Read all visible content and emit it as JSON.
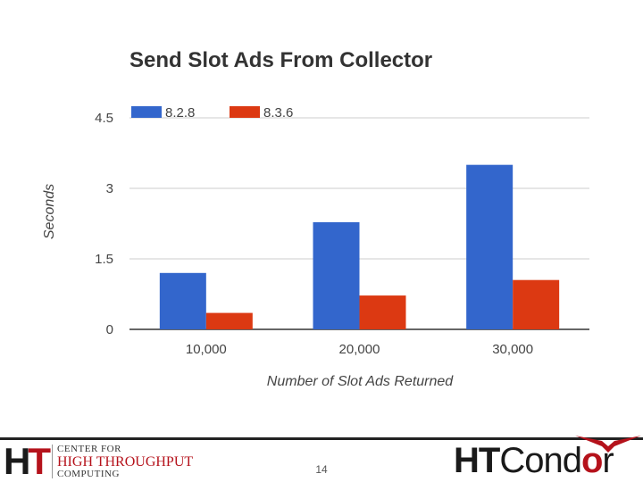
{
  "chart_data": {
    "type": "bar",
    "title": "Send Slot Ads From Collector",
    "xlabel": "Number of Slot Ads Returned",
    "ylabel": "Seconds",
    "categories": [
      "10,000",
      "20,000",
      "30,000"
    ],
    "series": [
      {
        "name": "8.2.8",
        "color": "#3366cc",
        "values": [
          1.2,
          2.28,
          3.5
        ]
      },
      {
        "name": "8.3.6",
        "color": "#dc3912",
        "values": [
          0.35,
          0.72,
          1.05
        ]
      }
    ],
    "ylim": [
      0,
      4.5
    ],
    "yticks": [
      "0",
      "1.5",
      "3",
      "4.5"
    ],
    "grid": true,
    "legend": "top-left"
  },
  "footer": {
    "chtc": {
      "mark_h": "H",
      "mark_t": "T",
      "line1": "CENTER FOR",
      "line2": "HIGH THROUGHPUT",
      "line3": "COMPUTING"
    },
    "page_number": "14",
    "htcondor": {
      "ht": "HT",
      "condor_a": "Cond",
      "condor_o": "o",
      "condor_r": "r"
    }
  }
}
